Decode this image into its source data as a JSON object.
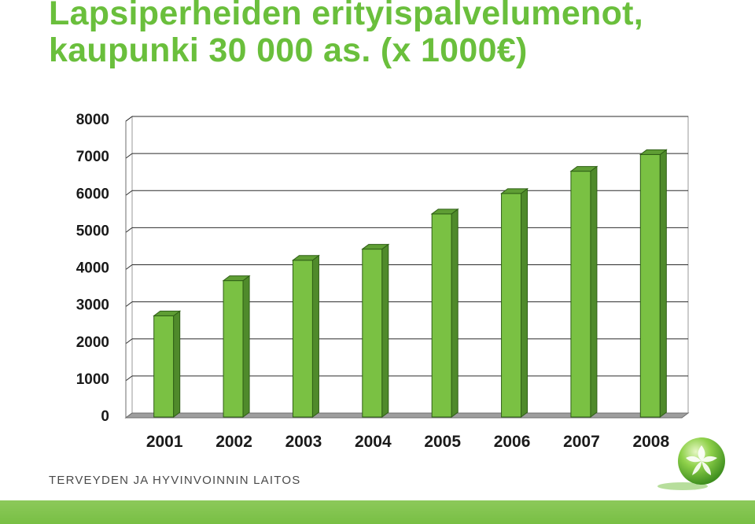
{
  "slide": {
    "title_line1": "Lapsiperheiden erityispalvelumenot,",
    "title_line2": "kaupunki 30 000 as. (x 1000€)",
    "organization": "TERVEYDEN JA HYVINVOINNIN LAITOS",
    "logo_icon": "leaf-sphere-icon",
    "footer_color": "#78bf44"
  },
  "chart_data": {
    "type": "bar",
    "title": "Lapsiperheiden erityispalvelumenot, kaupunki 30 000 as. (x 1000€)",
    "categories": [
      "2001",
      "2002",
      "2003",
      "2004",
      "2005",
      "2006",
      "2007",
      "2008"
    ],
    "values": [
      2750,
      3700,
      4250,
      4550,
      5500,
      6050,
      6650,
      7100
    ],
    "ylim": [
      0,
      8000
    ],
    "yticks": [
      "0",
      "1000",
      "2000",
      "3000",
      "4000",
      "5000",
      "6000",
      "7000",
      "8000"
    ],
    "xlabel": "",
    "ylabel": "",
    "grid": true,
    "legend": "none",
    "bar_color": "#7ac143",
    "bar_side_color": "#4f8a2b",
    "bar_top_color": "#5f9e34"
  }
}
